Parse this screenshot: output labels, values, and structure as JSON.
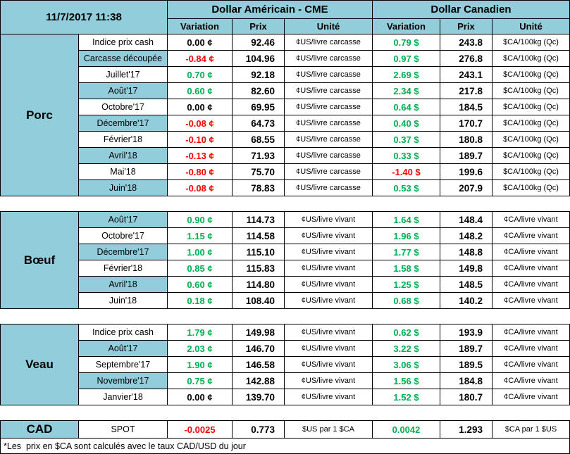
{
  "meta": {
    "timestamp": "11/7/2017 11:38"
  },
  "colors": {
    "header_fill": "#92CDDC",
    "positive": "#00B050",
    "negative": "#FF0000",
    "neutral": "#000000",
    "border": "#000000",
    "background": "#FFFFFF"
  },
  "header": {
    "us_title": "Dollar Américain - CME",
    "ca_title": "Dollar Canadien",
    "columns": {
      "variation": "Variation",
      "prix": "Prix",
      "unite": "Unité"
    }
  },
  "sections": [
    {
      "name": "Porc",
      "kind": "commodity",
      "rows": [
        {
          "label": "Indice prix cash",
          "us_variation": "0.00 ¢",
          "us_prix": "92.46",
          "us_unite": "¢US/livre carcasse",
          "ca_variation": "0.79 $",
          "ca_prix": "243.8",
          "ca_unite": "$CA/100kg (Qc)"
        },
        {
          "label": "Carcasse découpée",
          "us_variation": "-0.84 ¢",
          "us_prix": "104.96",
          "us_unite": "¢US/livre carcasse",
          "ca_variation": "0.97 $",
          "ca_prix": "276.8",
          "ca_unite": "$CA/100kg (Qc)"
        },
        {
          "label": "Juillet'17",
          "us_variation": "0.70 ¢",
          "us_prix": "92.18",
          "us_unite": "¢US/livre carcasse",
          "ca_variation": "2.69 $",
          "ca_prix": "243.1",
          "ca_unite": "$CA/100kg (Qc)"
        },
        {
          "label": "Août'17",
          "us_variation": "0.60 ¢",
          "us_prix": "82.60",
          "us_unite": "¢US/livre carcasse",
          "ca_variation": "2.34 $",
          "ca_prix": "217.8",
          "ca_unite": "$CA/100kg (Qc)"
        },
        {
          "label": "Octobre'17",
          "us_variation": "0.00 ¢",
          "us_prix": "69.95",
          "us_unite": "¢US/livre carcasse",
          "ca_variation": "0.64 $",
          "ca_prix": "184.5",
          "ca_unite": "$CA/100kg (Qc)"
        },
        {
          "label": "Décembre'17",
          "us_variation": "-0.08 ¢",
          "us_prix": "64.73",
          "us_unite": "¢US/livre carcasse",
          "ca_variation": "0.40 $",
          "ca_prix": "170.7",
          "ca_unite": "$CA/100kg (Qc)"
        },
        {
          "label": "Février'18",
          "us_variation": "-0.10 ¢",
          "us_prix": "68.55",
          "us_unite": "¢US/livre carcasse",
          "ca_variation": "0.37 $",
          "ca_prix": "180.8",
          "ca_unite": "$CA/100kg (Qc)"
        },
        {
          "label": "Avril'18",
          "us_variation": "-0.13 ¢",
          "us_prix": "71.93",
          "us_unite": "¢US/livre carcasse",
          "ca_variation": "0.33 $",
          "ca_prix": "189.7",
          "ca_unite": "$CA/100kg (Qc)"
        },
        {
          "label": "Mai'18",
          "us_variation": "-0.80 ¢",
          "us_prix": "75.70",
          "us_unite": "¢US/livre carcasse",
          "ca_variation": "-1.40 $",
          "ca_prix": "199.6",
          "ca_unite": "$CA/100kg (Qc)"
        },
        {
          "label": "Juin'18",
          "us_variation": "-0.08 ¢",
          "us_prix": "78.83",
          "us_unite": "¢US/livre carcasse",
          "ca_variation": "0.53 $",
          "ca_prix": "207.9",
          "ca_unite": "$CA/100kg (Qc)"
        }
      ]
    },
    {
      "name": "Bœuf",
      "kind": "commodity",
      "rows": [
        {
          "label": "Août'17",
          "us_variation": "0.90 ¢",
          "us_prix": "114.73",
          "us_unite": "¢US/livre vivant",
          "ca_variation": "1.64 $",
          "ca_prix": "148.4",
          "ca_unite": "¢CA/livre vivant"
        },
        {
          "label": "Octobre'17",
          "us_variation": "1.15 ¢",
          "us_prix": "114.58",
          "us_unite": "¢US/livre vivant",
          "ca_variation": "1.96 $",
          "ca_prix": "148.2",
          "ca_unite": "¢CA/livre vivant"
        },
        {
          "label": "Décembre'17",
          "us_variation": "1.00 ¢",
          "us_prix": "115.10",
          "us_unite": "¢US/livre vivant",
          "ca_variation": "1.77 $",
          "ca_prix": "148.8",
          "ca_unite": "¢CA/livre vivant"
        },
        {
          "label": "Février'18",
          "us_variation": "0.85 ¢",
          "us_prix": "115.83",
          "us_unite": "¢US/livre vivant",
          "ca_variation": "1.58 $",
          "ca_prix": "149.8",
          "ca_unite": "¢CA/livre vivant"
        },
        {
          "label": "Avril'18",
          "us_variation": "0.60 ¢",
          "us_prix": "114.80",
          "us_unite": "¢US/livre vivant",
          "ca_variation": "1.25 $",
          "ca_prix": "148.5",
          "ca_unite": "¢CA/livre vivant"
        },
        {
          "label": "Juin'18",
          "us_variation": "0.18 ¢",
          "us_prix": "108.40",
          "us_unite": "¢US/livre vivant",
          "ca_variation": "0.68 $",
          "ca_prix": "140.2",
          "ca_unite": "¢CA/livre vivant"
        }
      ]
    },
    {
      "name": "Veau",
      "kind": "commodity",
      "rows": [
        {
          "label": "Indice prix cash",
          "us_variation": "1.79 ¢",
          "us_prix": "149.98",
          "us_unite": "¢US/livre vivant",
          "ca_variation": "0.62 $",
          "ca_prix": "193.9",
          "ca_unite": "¢CA/livre vivant"
        },
        {
          "label": "Août'17",
          "us_variation": "2.03 ¢",
          "us_prix": "146.70",
          "us_unite": "¢US/livre vivant",
          "ca_variation": "3.22 $",
          "ca_prix": "189.7",
          "ca_unite": "¢CA/livre vivant"
        },
        {
          "label": "Septembre'17",
          "us_variation": "1.90 ¢",
          "us_prix": "146.58",
          "us_unite": "¢US/livre vivant",
          "ca_variation": "3.06 $",
          "ca_prix": "189.5",
          "ca_unite": "¢CA/livre vivant"
        },
        {
          "label": "Novembre'17",
          "us_variation": "0.75 ¢",
          "us_prix": "142.88",
          "us_unite": "¢US/livre vivant",
          "ca_variation": "1.56 $",
          "ca_prix": "184.8",
          "ca_unite": "¢CA/livre vivant"
        },
        {
          "label": "Janvier'18",
          "us_variation": "0.00 ¢",
          "us_prix": "139.70",
          "us_unite": "¢US/livre vivant",
          "ca_variation": "1.52 $",
          "ca_prix": "180.7",
          "ca_unite": "¢CA/livre vivant"
        }
      ]
    },
    {
      "name": "CAD",
      "kind": "fx",
      "rows": [
        {
          "label": "SPOT",
          "us_variation": "-0.0025",
          "us_prix": "0.773",
          "us_unite": "$US par 1 $CA",
          "ca_variation": "0.0042",
          "ca_prix": "1.293",
          "ca_unite": "$CA par 1 $US"
        }
      ]
    }
  ],
  "footnote": "*Les  prix en $CA sont calculés avec le taux CAD/USD du jour"
}
